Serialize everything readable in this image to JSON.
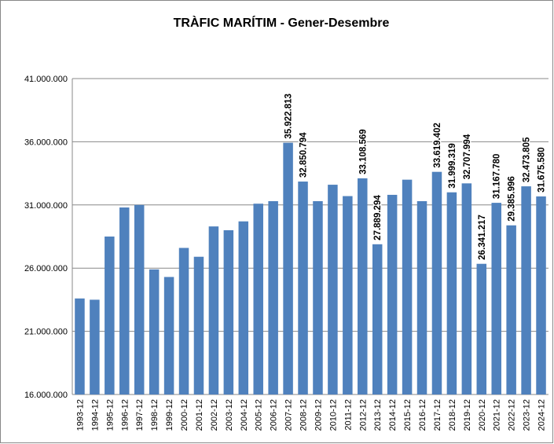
{
  "chart_data": {
    "type": "bar",
    "title": "TRÀFIC MARÍTIM - Gener-Desembre",
    "categories": [
      "1993-12",
      "1994-12",
      "1995-12",
      "1996-12",
      "1997-12",
      "1998-12",
      "1999-12",
      "2000-12",
      "2001-12",
      "2002-12",
      "2003-12",
      "2004-12",
      "2005-12",
      "2006-12",
      "2007-12",
      "2008-12",
      "2009-12",
      "2010-12",
      "2011-12",
      "2012-12",
      "2013-12",
      "2014-12",
      "2015-12",
      "2016-12",
      "2017-12",
      "2018-12",
      "2019-12",
      "2020-12",
      "2021-12",
      "2022-12",
      "2023-12",
      "2024-12"
    ],
    "values": [
      23600000,
      23500000,
      28500000,
      30800000,
      31000000,
      25900000,
      25300000,
      27600000,
      26900000,
      29300000,
      29000000,
      29700000,
      31100000,
      31300000,
      35922813,
      32850794,
      31300000,
      32600000,
      31700000,
      33108569,
      27889294,
      31800000,
      33000000,
      31300000,
      33619402,
      31999319,
      32707994,
      26341217,
      31167780,
      29385996,
      32473805,
      31675580
    ],
    "value_labels": [
      null,
      null,
      null,
      null,
      null,
      null,
      null,
      null,
      null,
      null,
      null,
      null,
      null,
      null,
      "35.922.813",
      "32.850.794",
      null,
      null,
      null,
      "33.108.569",
      "27.889.294",
      null,
      null,
      null,
      "33.619.402",
      "31.999.319",
      "32.707.994",
      "26.341.217",
      "31.167.780",
      "29.385.996",
      "32.473.805",
      "31.675.580"
    ],
    "color": "#4f81bd",
    "ylim": [
      16000000,
      41000000
    ],
    "yticks": [
      {
        "value": 16000000,
        "label": "16.000.000"
      },
      {
        "value": 21000000,
        "label": "21.000.000"
      },
      {
        "value": 26000000,
        "label": "26.000.000"
      },
      {
        "value": 31000000,
        "label": "31.000.000"
      },
      {
        "value": 36000000,
        "label": "36.000.000"
      },
      {
        "value": 41000000,
        "label": "41.000.000"
      }
    ],
    "grid": true
  }
}
